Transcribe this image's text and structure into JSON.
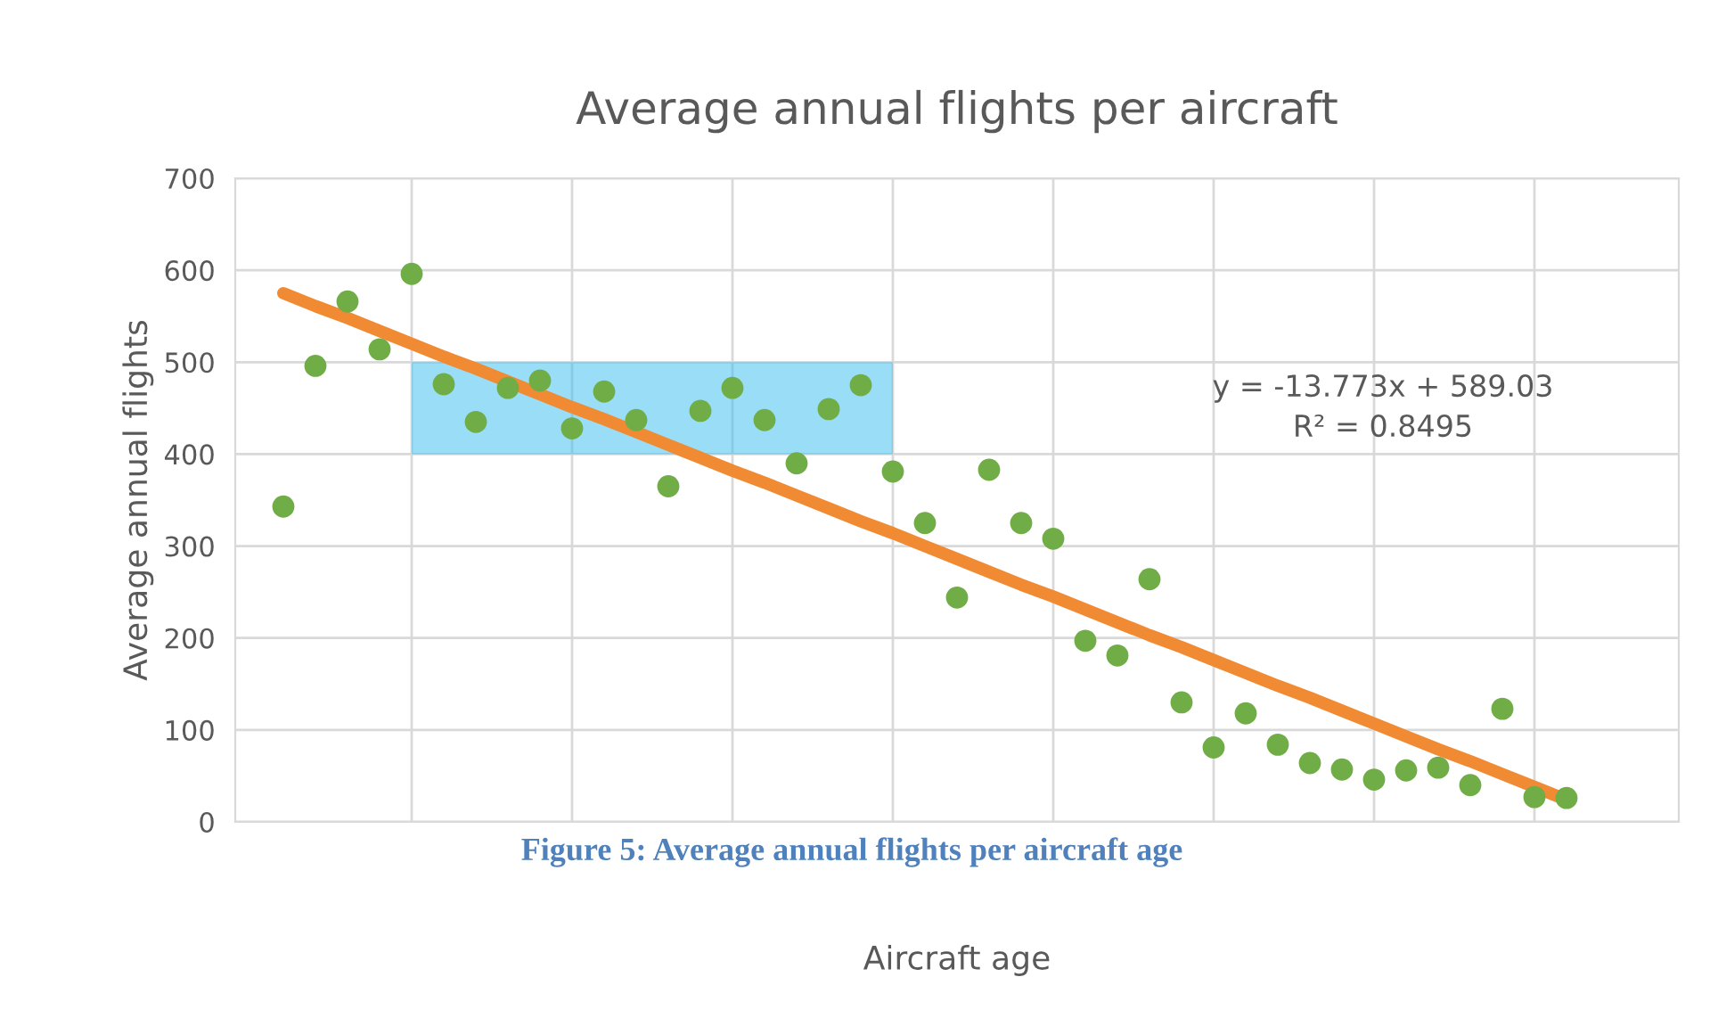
{
  "chart_data": {
    "type": "scatter",
    "title": "Average annual flights per aircraft",
    "xlabel": "Aircraft age",
    "ylabel": "Average annual flights",
    "categories": [
      null,
      null,
      null,
      null,
      null,
      null,
      null,
      null,
      null,
      null,
      null,
      null,
      null,
      null,
      null,
      null,
      null,
      null,
      null,
      null,
      null,
      null,
      null,
      null,
      null,
      null,
      null,
      null,
      null,
      null,
      null,
      null,
      null,
      null,
      null,
      null,
      null,
      null,
      null,
      null,
      null,
      null,
      null,
      null,
      null
    ],
    "series": [
      {
        "color": "#70ad47",
        "values": [
          null,
          343,
          496,
          566,
          514,
          596,
          476,
          435,
          472,
          480,
          428,
          468,
          437,
          365,
          447,
          472,
          437,
          390,
          449,
          475,
          381,
          325,
          244,
          383,
          325,
          308,
          197,
          181,
          264,
          130,
          81,
          118,
          84,
          64,
          57,
          46,
          56,
          59,
          40,
          123,
          27,
          26,
          null,
          null,
          null
        ]
      },
      {
        "type": "line",
        "marker": "none",
        "color": "#f08a33",
        "values": [
          null,
          575,
          561,
          548,
          534,
          520,
          506,
          493,
          479,
          465,
          451,
          438,
          424,
          410,
          396,
          382,
          369,
          355,
          341,
          327,
          314,
          300,
          286,
          272,
          258,
          245,
          231,
          217,
          203,
          190,
          176,
          162,
          148,
          135,
          121,
          107,
          93,
          79,
          66,
          52,
          38,
          24,
          null,
          null,
          null
        ]
      }
    ],
    "marker": "circle",
    "ylim": [
      0,
      700
    ],
    "yticks": [
      0,
      100,
      200,
      300,
      400,
      500,
      600,
      700
    ],
    "tick_labels": "y",
    "grid": true,
    "bands": [
      {
        "axis": "y",
        "from": 400,
        "to": 500,
        "color": "#33bbee"
      }
    ],
    "annotations": [
      "y = -13.773x + 589.03\nR² = 0.8495",
      "Figure 5: Average annual flights per aircraft age"
    ]
  }
}
